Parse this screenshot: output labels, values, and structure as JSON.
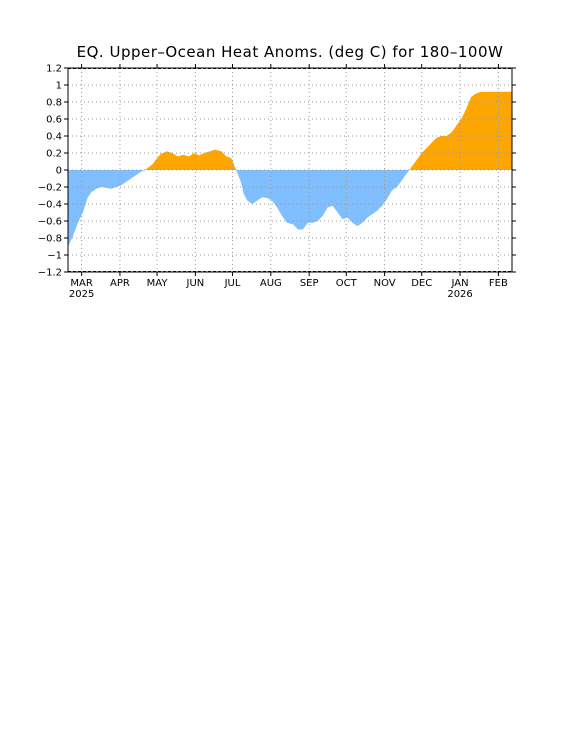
{
  "chart_data": {
    "type": "area",
    "title": "EQ. Upper–Ocean Heat Anoms. (deg C) for 180–100W",
    "xlabel": "",
    "ylabel": "",
    "ylim": [
      -1.2,
      1.2
    ],
    "yticks": [
      "1.2",
      "1",
      "0.8",
      "0.6",
      "0.4",
      "0.2",
      "0",
      "−0.2",
      "−0.4",
      "−0.6",
      "−0.8",
      "−1",
      "−1.2"
    ],
    "ytick_values": [
      1.2,
      1.0,
      0.8,
      0.6,
      0.4,
      0.2,
      0.0,
      -0.2,
      -0.4,
      -0.6,
      -0.8,
      -1.0,
      -1.2
    ],
    "xrange": [
      "2025-02-18",
      "2026-02-12"
    ],
    "xticks": [
      {
        "date": "2025-03-01",
        "label": "MAR",
        "sublabel": "2025"
      },
      {
        "date": "2025-04-01",
        "label": "APR",
        "sublabel": ""
      },
      {
        "date": "2025-05-01",
        "label": "MAY",
        "sublabel": ""
      },
      {
        "date": "2025-06-01",
        "label": "JUN",
        "sublabel": ""
      },
      {
        "date": "2025-07-01",
        "label": "JUL",
        "sublabel": ""
      },
      {
        "date": "2025-08-01",
        "label": "AUG",
        "sublabel": ""
      },
      {
        "date": "2025-09-01",
        "label": "SEP",
        "sublabel": ""
      },
      {
        "date": "2025-10-01",
        "label": "OCT",
        "sublabel": ""
      },
      {
        "date": "2025-11-01",
        "label": "NOV",
        "sublabel": ""
      },
      {
        "date": "2025-12-01",
        "label": "DEC",
        "sublabel": ""
      },
      {
        "date": "2026-01-01",
        "label": "JAN",
        "sublabel": "2026"
      },
      {
        "date": "2026-02-01",
        "label": "FEB",
        "sublabel": ""
      }
    ],
    "grid": true,
    "colors": {
      "positive": "#ffa500",
      "negative": "#7fbfff",
      "grid": "#9a9a9a"
    },
    "series": [
      {
        "dates": [
          "2025-02-18",
          "2025-02-22",
          "2025-02-26",
          "2025-03-02",
          "2025-03-06",
          "2025-03-09",
          "2025-03-13",
          "2025-03-17",
          "2025-03-21",
          "2025-03-25",
          "2025-03-29",
          "2025-04-02",
          "2025-04-06",
          "2025-04-10",
          "2025-04-14",
          "2025-04-18",
          "2025-04-21",
          "2025-04-25",
          "2025-04-28",
          "2025-05-01",
          "2025-05-04",
          "2025-05-09",
          "2025-05-13",
          "2025-05-18",
          "2025-05-22",
          "2025-05-27",
          "2025-05-31",
          "2025-06-04",
          "2025-06-08",
          "2025-06-13",
          "2025-06-17",
          "2025-06-22",
          "2025-06-26",
          "2025-06-30",
          "2025-07-04",
          "2025-07-08",
          "2025-07-10",
          "2025-07-13",
          "2025-07-17",
          "2025-07-21",
          "2025-07-25",
          "2025-07-29",
          "2025-08-02",
          "2025-08-06",
          "2025-08-10",
          "2025-08-14",
          "2025-08-19",
          "2025-08-23",
          "2025-08-27",
          "2025-08-31",
          "2025-09-04",
          "2025-09-08",
          "2025-09-12",
          "2025-09-16",
          "2025-09-20",
          "2025-09-24",
          "2025-09-28",
          "2025-10-02",
          "2025-10-06",
          "2025-10-10",
          "2025-10-14",
          "2025-10-18",
          "2025-10-22",
          "2025-10-26",
          "2025-10-30",
          "2025-11-03",
          "2025-11-07",
          "2025-11-11",
          "2025-11-15",
          "2025-11-19",
          "2025-11-23",
          "2025-11-27",
          "2025-12-01",
          "2025-12-05",
          "2025-12-09",
          "2025-12-13",
          "2025-12-17",
          "2025-12-21",
          "2025-12-25",
          "2025-12-29",
          "2026-01-02",
          "2026-01-06",
          "2026-01-10",
          "2026-01-14",
          "2026-01-18",
          "2026-01-22",
          "2026-01-26",
          "2026-01-30",
          "2026-02-03",
          "2026-02-07",
          "2026-02-12"
        ],
        "values": [
          -0.9,
          -0.78,
          -0.62,
          -0.5,
          -0.32,
          -0.26,
          -0.22,
          -0.2,
          -0.21,
          -0.22,
          -0.2,
          -0.18,
          -0.14,
          -0.1,
          -0.06,
          -0.02,
          0.0,
          0.04,
          0.08,
          0.14,
          0.19,
          0.22,
          0.2,
          0.16,
          0.18,
          0.16,
          0.2,
          0.17,
          0.2,
          0.22,
          0.24,
          0.22,
          0.16,
          0.14,
          0.0,
          -0.15,
          -0.28,
          -0.36,
          -0.4,
          -0.36,
          -0.32,
          -0.33,
          -0.36,
          -0.44,
          -0.54,
          -0.62,
          -0.64,
          -0.7,
          -0.7,
          -0.62,
          -0.62,
          -0.6,
          -0.54,
          -0.44,
          -0.42,
          -0.5,
          -0.58,
          -0.56,
          -0.62,
          -0.66,
          -0.62,
          -0.56,
          -0.52,
          -0.48,
          -0.42,
          -0.34,
          -0.24,
          -0.2,
          -0.12,
          -0.04,
          0.04,
          0.12,
          0.2,
          0.26,
          0.32,
          0.38,
          0.4,
          0.4,
          0.44,
          0.52,
          0.6,
          0.72,
          0.86,
          0.9,
          0.92,
          0.92,
          0.92,
          0.92,
          0.92,
          0.92,
          0.92
        ]
      }
    ]
  }
}
